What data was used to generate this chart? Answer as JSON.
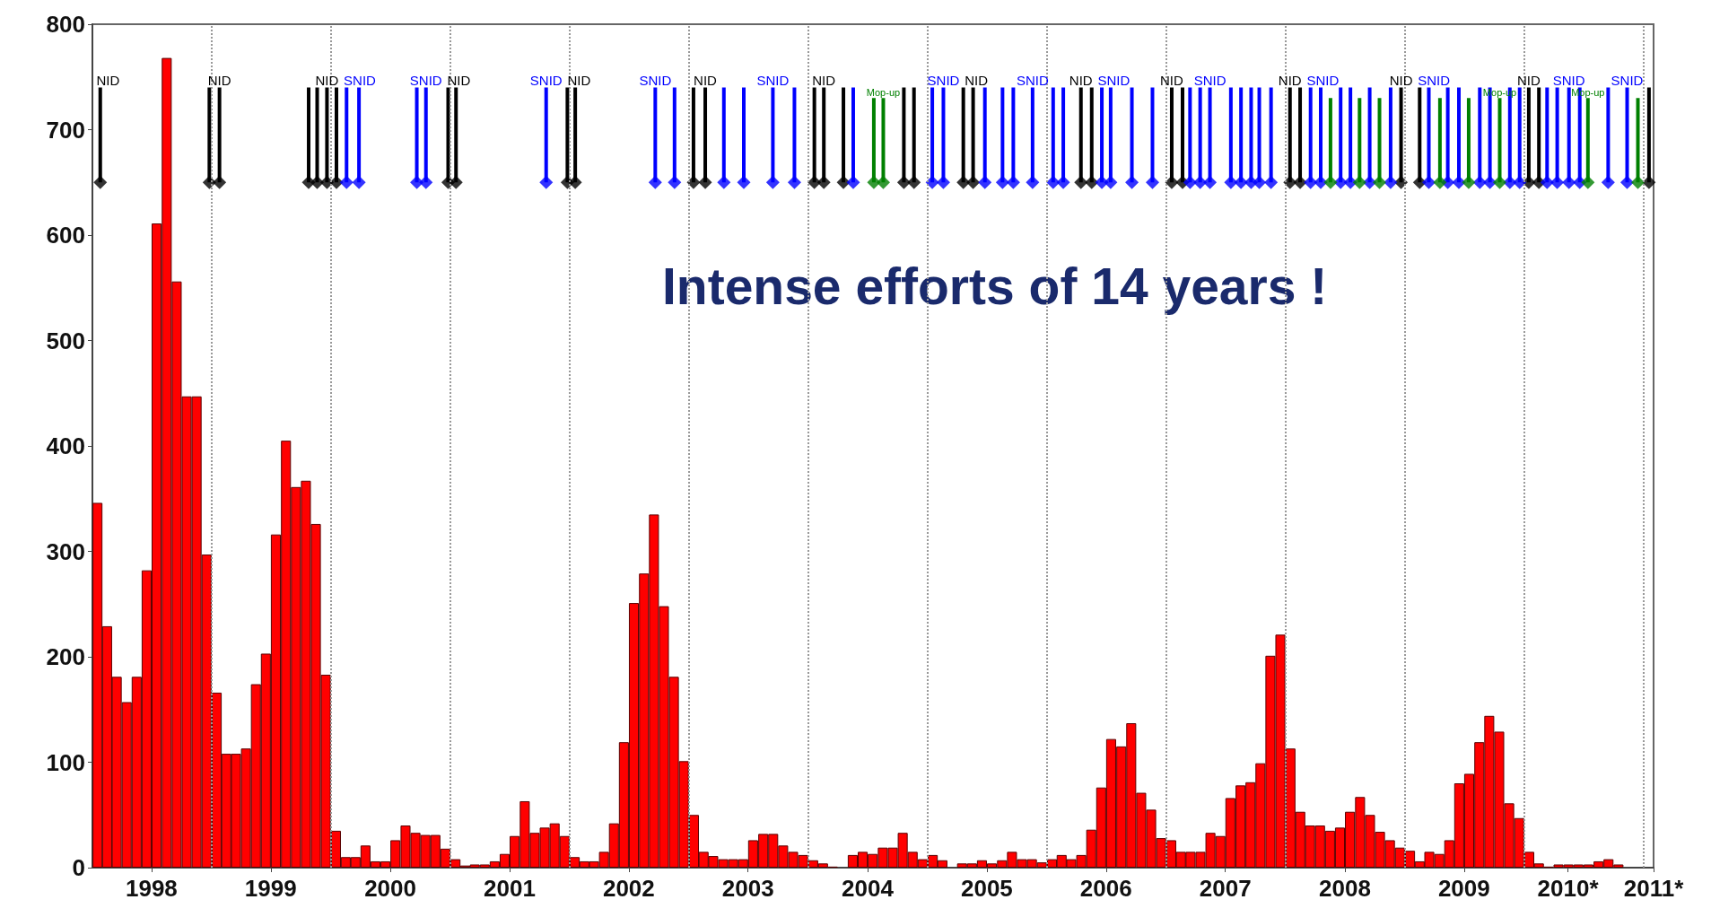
{
  "chart_data": {
    "type": "bar",
    "x": [
      "1998-01",
      "1998-02",
      "1998-03",
      "1998-04",
      "1998-05",
      "1998-06",
      "1998-07",
      "1998-08",
      "1998-09",
      "1998-10",
      "1998-11",
      "1998-12",
      "1999-01",
      "1999-02",
      "1999-03",
      "1999-04",
      "1999-05",
      "1999-06",
      "1999-07",
      "1999-08",
      "1999-09",
      "1999-10",
      "1999-11",
      "1999-12",
      "2000-01",
      "2000-02",
      "2000-03",
      "2000-04",
      "2000-05",
      "2000-06",
      "2000-07",
      "2000-08",
      "2000-09",
      "2000-10",
      "2000-11",
      "2000-12",
      "2001-01",
      "2001-02",
      "2001-03",
      "2001-04",
      "2001-05",
      "2001-06",
      "2001-07",
      "2001-08",
      "2001-09",
      "2001-10",
      "2001-11",
      "2001-12",
      "2002-01",
      "2002-02",
      "2002-03",
      "2002-04",
      "2002-05",
      "2002-06",
      "2002-07",
      "2002-08",
      "2002-09",
      "2002-10",
      "2002-11",
      "2002-12",
      "2003-01",
      "2003-02",
      "2003-03",
      "2003-04",
      "2003-05",
      "2003-06",
      "2003-07",
      "2003-08",
      "2003-09",
      "2003-10",
      "2003-11",
      "2003-12",
      "2004-01",
      "2004-02",
      "2004-03",
      "2004-04",
      "2004-05",
      "2004-06",
      "2004-07",
      "2004-08",
      "2004-09",
      "2004-10",
      "2004-11",
      "2004-12",
      "2005-01",
      "2005-02",
      "2005-03",
      "2005-04",
      "2005-05",
      "2005-06",
      "2005-07",
      "2005-08",
      "2005-09",
      "2005-10",
      "2005-11",
      "2005-12",
      "2006-01",
      "2006-02",
      "2006-03",
      "2006-04",
      "2006-05",
      "2006-06",
      "2006-07",
      "2006-08",
      "2006-09",
      "2006-10",
      "2006-11",
      "2006-12",
      "2007-01",
      "2007-02",
      "2007-03",
      "2007-04",
      "2007-05",
      "2007-06",
      "2007-07",
      "2007-08",
      "2007-09",
      "2007-10",
      "2007-11",
      "2007-12",
      "2008-01",
      "2008-02",
      "2008-03",
      "2008-04",
      "2008-05",
      "2008-06",
      "2008-07",
      "2008-08",
      "2008-09",
      "2008-10",
      "2008-11",
      "2008-12",
      "2009-01",
      "2009-02",
      "2009-03",
      "2009-04",
      "2009-05",
      "2009-06",
      "2009-07",
      "2009-08",
      "2009-09",
      "2009-10",
      "2009-11",
      "2009-12",
      "2010-01",
      "2010-02",
      "2010-03",
      "2010-04",
      "2010-05",
      "2010-06",
      "2010-07",
      "2010-08",
      "2010-09",
      "2010-10",
      "2010-11",
      "2010-12"
    ],
    "series": [
      {
        "color": "#ff0000",
        "values": [
          346,
          229,
          181,
          157,
          181,
          282,
          611,
          768,
          556,
          447,
          447,
          297,
          166,
          108,
          108,
          113,
          174,
          203,
          316,
          405,
          361,
          367,
          326,
          183,
          35,
          10,
          10,
          21,
          6,
          6,
          26,
          40,
          33,
          31,
          31,
          18,
          8,
          2,
          3,
          3,
          6,
          13,
          30,
          63,
          33,
          38,
          42,
          30,
          10,
          6,
          6,
          15,
          42,
          119,
          251,
          279,
          335,
          248,
          181,
          101,
          50,
          15,
          11,
          8,
          8,
          8,
          26,
          32,
          32,
          21,
          15,
          12,
          7,
          4,
          1,
          0,
          12,
          15,
          13,
          19,
          19,
          33,
          15,
          8,
          12,
          7,
          0,
          4,
          4,
          7,
          4,
          7,
          15,
          8,
          8,
          5,
          8,
          12,
          8,
          12,
          36,
          76,
          122,
          115,
          137,
          71,
          55,
          28,
          26,
          15,
          15,
          15,
          33,
          30,
          66,
          78,
          81,
          99,
          201,
          221,
          113,
          53,
          40,
          40,
          35,
          38,
          53,
          67,
          50,
          34,
          26,
          19,
          16,
          6,
          15,
          13,
          26,
          80,
          89,
          119,
          144,
          129,
          61,
          47,
          15,
          4,
          1,
          3,
          3,
          3,
          3,
          6,
          8,
          3,
          0,
          0
        ]
      },
      {
        "type": "scatter",
        "color": "#000000",
        "x": [
          "1998-01-25",
          "1998-12-25",
          "1999-01-25",
          "1999-10-25",
          "1999-11-20",
          "1999-12-20",
          "2000-01-18",
          "2000-12-25",
          "2001-01-18",
          "2001-12-25",
          "2002-01-18",
          "2003-01-15",
          "2003-02-20",
          "2004-01-20",
          "2004-02-18",
          "2004-04-18",
          "2004-10-20",
          "2004-11-20",
          "2005-04-20",
          "2005-05-20",
          "2006-04-15",
          "2006-05-18",
          "2007-01-18",
          "2007-02-20",
          "2008-01-15",
          "2008-02-15",
          "2008-12-20",
          "2009-02-15",
          "2010-01-15",
          "2010-02-15",
          "2011-01-18"
        ],
        "values": [
          650,
          650,
          650,
          650,
          650,
          650,
          650,
          650,
          650,
          650,
          650,
          650,
          650,
          650,
          650,
          650,
          650,
          650,
          650,
          650,
          650,
          650,
          650,
          650,
          650,
          650,
          650,
          650,
          650,
          650,
          650
        ],
        "errors": [
          [
            650,
            740
          ],
          [
            650,
            740
          ],
          [
            650,
            740
          ],
          [
            650,
            740
          ],
          [
            650,
            740
          ],
          [
            650,
            740
          ],
          [
            650,
            740
          ],
          [
            650,
            740
          ],
          [
            650,
            740
          ],
          [
            650,
            740
          ],
          [
            650,
            740
          ],
          [
            650,
            740
          ],
          [
            650,
            740
          ],
          [
            650,
            740
          ],
          [
            650,
            740
          ],
          [
            650,
            740
          ],
          [
            650,
            740
          ],
          [
            650,
            740
          ],
          [
            650,
            740
          ],
          [
            650,
            740
          ],
          [
            650,
            740
          ],
          [
            650,
            740
          ],
          [
            650,
            740
          ],
          [
            650,
            740
          ],
          [
            650,
            740
          ],
          [
            650,
            740
          ],
          [
            650,
            740
          ],
          [
            650,
            740
          ],
          [
            650,
            740
          ],
          [
            650,
            740
          ],
          [
            650,
            740
          ]
        ]
      },
      {
        "type": "scatter",
        "color": "#0000ff",
        "x": [
          "2000-02-18",
          "2000-03-27",
          "2000-09-20",
          "2000-10-18",
          "2001-10-21",
          "2002-09-20",
          "2002-11-18",
          "2003-04-18",
          "2003-06-18",
          "2003-09-15",
          "2003-11-20",
          "2004-05-18",
          "2005-01-15",
          "2005-02-18",
          "2005-06-25",
          "2005-08-18",
          "2005-09-20",
          "2005-11-18",
          "2006-01-20",
          "2006-02-20",
          "2006-06-18",
          "2006-07-15",
          "2006-09-18",
          "2006-11-20",
          "2007-03-15",
          "2007-04-15",
          "2007-05-15",
          "2007-07-18",
          "2007-08-18",
          "2007-09-18",
          "2007-10-13",
          "2007-11-18",
          "2008-03-18",
          "2008-04-18",
          "2008-06-18",
          "2008-07-18",
          "2008-09-15",
          "2008-11-18",
          "2009-03-15",
          "2009-05-12",
          "2009-06-15",
          "2009-08-18",
          "2009-09-18",
          "2009-11-18",
          "2009-12-18",
          "2010-03-12",
          "2010-04-12",
          "2010-05-18",
          "2010-06-20",
          "2010-09-15",
          "2010-11-12"
        ],
        "values": [
          650,
          650,
          650,
          650,
          650,
          650,
          650,
          650,
          650,
          650,
          650,
          650,
          650,
          650,
          650,
          650,
          650,
          650,
          650,
          650,
          650,
          650,
          650,
          650,
          650,
          650,
          650,
          650,
          650,
          650,
          650,
          650,
          650,
          650,
          650,
          650,
          650,
          650,
          650,
          650,
          650,
          650,
          650,
          650,
          650,
          650,
          650,
          650,
          650,
          650,
          650
        ],
        "errors": [
          [
            650,
            740
          ],
          [
            650,
            740
          ],
          [
            650,
            740
          ],
          [
            650,
            740
          ],
          [
            650,
            740
          ],
          [
            650,
            740
          ],
          [
            650,
            740
          ],
          [
            650,
            740
          ],
          [
            650,
            740
          ],
          [
            650,
            740
          ],
          [
            650,
            740
          ],
          [
            650,
            740
          ],
          [
            650,
            740
          ],
          [
            650,
            740
          ],
          [
            650,
            740
          ],
          [
            650,
            740
          ],
          [
            650,
            740
          ],
          [
            650,
            740
          ],
          [
            650,
            740
          ],
          [
            650,
            740
          ],
          [
            650,
            740
          ],
          [
            650,
            740
          ],
          [
            650,
            740
          ],
          [
            650,
            740
          ],
          [
            650,
            740
          ],
          [
            650,
            740
          ],
          [
            650,
            740
          ],
          [
            650,
            740
          ],
          [
            650,
            740
          ],
          [
            650,
            740
          ],
          [
            650,
            740
          ],
          [
            650,
            740
          ],
          [
            650,
            740
          ],
          [
            650,
            740
          ],
          [
            650,
            740
          ],
          [
            650,
            740
          ],
          [
            650,
            740
          ],
          [
            650,
            740
          ],
          [
            650,
            740
          ],
          [
            650,
            740
          ],
          [
            650,
            740
          ],
          [
            650,
            740
          ],
          [
            650,
            740
          ],
          [
            650,
            740
          ],
          [
            650,
            740
          ],
          [
            650,
            740
          ],
          [
            650,
            740
          ],
          [
            650,
            740
          ],
          [
            650,
            740
          ],
          [
            650,
            740
          ],
          [
            650,
            740
          ]
        ]
      },
      {
        "type": "scatter",
        "color": "#008000",
        "x": [
          "2004-07-20",
          "2004-08-18",
          "2008-05-18",
          "2008-08-15",
          "2008-10-15",
          "2009-04-18",
          "2009-07-15",
          "2009-10-18",
          "2010-07-15",
          "2010-12-15"
        ],
        "values": [
          650,
          650,
          650,
          650,
          650,
          650,
          650,
          650,
          650,
          650
        ],
        "errors": [
          [
            650,
            730
          ],
          [
            650,
            730
          ],
          [
            650,
            730
          ],
          [
            650,
            730
          ],
          [
            650,
            730
          ],
          [
            650,
            730
          ],
          [
            650,
            730
          ],
          [
            650,
            730
          ],
          [
            650,
            730
          ],
          [
            650,
            730
          ]
        ]
      }
    ],
    "marker": "diamond",
    "xlim": [
      "1998-01-01",
      "2011-02-01"
    ],
    "xticks": [
      {
        "value": "1998-07-01",
        "label": "1998"
      },
      {
        "value": "1999-07-01",
        "label": "1999"
      },
      {
        "value": "2000-07-01",
        "label": "2000"
      },
      {
        "value": "2001-07-01",
        "label": "2001"
      },
      {
        "value": "2002-07-01",
        "label": "2002"
      },
      {
        "value": "2003-07-01",
        "label": "2003"
      },
      {
        "value": "2004-07-01",
        "label": "2004"
      },
      {
        "value": "2005-07-01",
        "label": "2005"
      },
      {
        "value": "2006-07-01",
        "label": "2006"
      },
      {
        "value": "2007-07-01",
        "label": "2007"
      },
      {
        "value": "2008-07-01",
        "label": "2008"
      },
      {
        "value": "2009-07-01",
        "label": "2009"
      },
      {
        "value": "2010-05-15",
        "label": "2010*"
      },
      {
        "value": "2011-02-01",
        "label": "2011*"
      }
    ],
    "ylim": [
      0,
      800
    ],
    "yticks": [
      0,
      100,
      200,
      300,
      400,
      500,
      600,
      700,
      800
    ],
    "ref_lines": [
      {
        "axis": "x",
        "value": "1999-01-01",
        "line_style": "dotted",
        "color": "#999999"
      },
      {
        "axis": "x",
        "value": "2000-01-01",
        "line_style": "dotted",
        "color": "#999999"
      },
      {
        "axis": "x",
        "value": "2001-01-01",
        "line_style": "dotted",
        "color": "#999999"
      },
      {
        "axis": "x",
        "value": "2002-01-01",
        "line_style": "dotted",
        "color": "#999999"
      },
      {
        "axis": "x",
        "value": "2003-01-01",
        "line_style": "dotted",
        "color": "#999999"
      },
      {
        "axis": "x",
        "value": "2004-01-01",
        "line_style": "dotted",
        "color": "#999999"
      },
      {
        "axis": "x",
        "value": "2005-01-01",
        "line_style": "dotted",
        "color": "#999999"
      },
      {
        "axis": "x",
        "value": "2006-01-01",
        "line_style": "dotted",
        "color": "#999999"
      },
      {
        "axis": "x",
        "value": "2007-01-01",
        "line_style": "dotted",
        "color": "#999999"
      },
      {
        "axis": "x",
        "value": "2008-01-01",
        "line_style": "dotted",
        "color": "#999999"
      },
      {
        "axis": "x",
        "value": "2009-01-01",
        "line_style": "dotted",
        "color": "#999999"
      },
      {
        "axis": "x",
        "value": "2010-01-01",
        "line_style": "dotted",
        "color": "#999999"
      },
      {
        "axis": "x",
        "value": "2011-01-01",
        "line_style": "dotted",
        "color": "#999999"
      }
    ],
    "annotations": [
      "Intense efforts of 14 years !",
      {
        "text": "NID",
        "x": "1998-01-25",
        "y": 740
      },
      {
        "text": "NID",
        "x": "1999-01-25",
        "y": 740
      },
      {
        "text": "NID",
        "x": "1999-12-20",
        "y": 740
      },
      {
        "text": "SNID",
        "x": "2000-03-27",
        "y": 740
      },
      {
        "text": "SNID",
        "x": "2000-10-18",
        "y": 740
      },
      {
        "text": "NID",
        "x": "2000-12-25",
        "y": 740
      },
      {
        "text": "SNID",
        "x": "2001-10-21",
        "y": 740
      },
      {
        "text": "NID",
        "x": "2001-12-25",
        "y": 740
      },
      {
        "text": "SNID",
        "x": "2002-09-20",
        "y": 740
      },
      {
        "text": "NID",
        "x": "2003-02-20",
        "y": 740
      },
      {
        "text": "SNID",
        "x": "2003-09-15",
        "y": 740
      },
      {
        "text": "NID",
        "x": "2004-02-18",
        "y": 740
      },
      {
        "text": "Mop-up",
        "x": "2004-08-18",
        "y": 730
      },
      {
        "text": "SNID",
        "x": "2005-02-18",
        "y": 740
      },
      {
        "text": "NID",
        "x": "2005-05-20",
        "y": 740
      },
      {
        "text": "SNID",
        "x": "2005-11-18",
        "y": 740
      },
      {
        "text": "NID",
        "x": "2006-04-15",
        "y": 740
      },
      {
        "text": "SNID",
        "x": "2006-06-18",
        "y": 740
      },
      {
        "text": "NID",
        "x": "2007-01-18",
        "y": 740
      },
      {
        "text": "SNID",
        "x": "2007-05-15",
        "y": 740
      },
      {
        "text": "NID",
        "x": "2008-01-15",
        "y": 740
      },
      {
        "text": "SNID",
        "x": "2008-04-18",
        "y": 740
      },
      {
        "text": "NID",
        "x": "2008-12-20",
        "y": 740
      },
      {
        "text": "SNID",
        "x": "2009-03-15",
        "y": 740
      },
      {
        "text": "Mop-up",
        "x": "2009-10-18",
        "y": 730
      },
      {
        "text": "NID",
        "x": "2010-01-15",
        "y": 740
      },
      {
        "text": "SNID",
        "x": "2010-05-18",
        "y": 740
      },
      {
        "text": "Mop-up",
        "x": "2010-07-15",
        "y": 730
      },
      {
        "text": "SNID",
        "x": "2010-11-12",
        "y": 740
      }
    ]
  }
}
